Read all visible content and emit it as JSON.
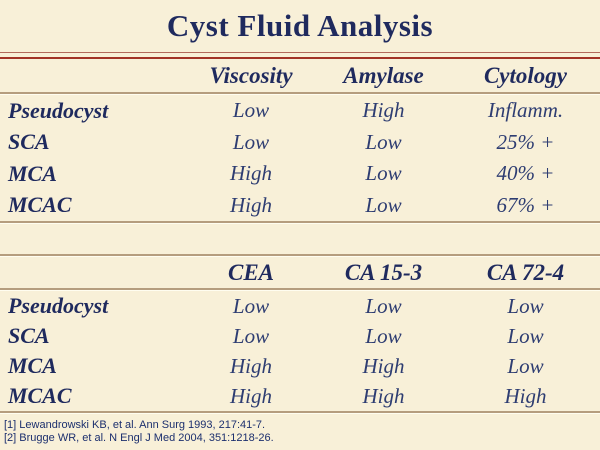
{
  "slide": {
    "title": "Cyst Fluid Analysis"
  },
  "colors": {
    "background": "#f8f0d8",
    "title_navy": "#1f2a5e",
    "value_navy": "#2e3d72",
    "red_rule": "#a23326",
    "tan_rule": "#b59d7e"
  },
  "table1": {
    "columns": [
      "Viscosity",
      "Amylase",
      "Cytology"
    ],
    "rows": [
      {
        "label": "Pseudocyst",
        "values": [
          "Low",
          "High",
          "Inflamm."
        ]
      },
      {
        "label": "SCA",
        "values": [
          "Low",
          "Low",
          "25% +"
        ]
      },
      {
        "label": "MCA",
        "values": [
          "High",
          "Low",
          "40% +"
        ]
      },
      {
        "label": "MCAC",
        "values": [
          "High",
          "Low",
          "67% +"
        ]
      }
    ]
  },
  "table2": {
    "columns": [
      "CEA",
      "CA 15-3",
      "CA 72-4"
    ],
    "rows": [
      {
        "label": "Pseudocyst",
        "values": [
          "Low",
          "Low",
          "Low"
        ]
      },
      {
        "label": "SCA",
        "values": [
          "Low",
          "Low",
          "Low"
        ]
      },
      {
        "label": "MCA",
        "values": [
          "High",
          "High",
          "Low"
        ]
      },
      {
        "label": "MCAC",
        "values": [
          "High",
          "High",
          "High"
        ]
      }
    ]
  },
  "footnotes": [
    "[1] Lewandrowski KB, et al. Ann Surg 1993, 217:41-7.",
    "[2] Brugge WR, et al. N Engl J Med 2004, 351:1218-26."
  ]
}
